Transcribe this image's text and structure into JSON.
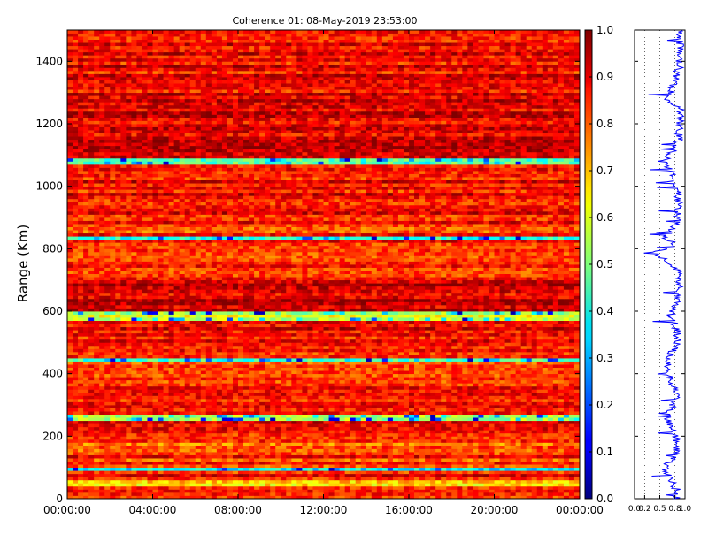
{
  "chart_data": [
    {
      "type": "heatmap",
      "title": "Coherence 01: 08-May-2019 23:53:00",
      "xlabel": "",
      "ylabel": "Range (Km)",
      "x_ticks": [
        "00:00:00",
        "04:00:00",
        "08:00:00",
        "12:00:00",
        "16:00:00",
        "20:00:00",
        "00:00:00"
      ],
      "y_ticks": [
        0,
        200,
        400,
        600,
        800,
        1000,
        1200,
        1400
      ],
      "ylim": [
        0,
        1500
      ],
      "x_range_hours": [
        0,
        24
      ],
      "colormap": "jet",
      "value_range": [
        0,
        1
      ],
      "colorbar_ticks": [
        "0.0",
        "0.1",
        "0.2",
        "0.3",
        "0.4",
        "0.5",
        "0.6",
        "0.7",
        "0.8",
        "0.9",
        "1.0"
      ],
      "band_values": [
        {
          "from": 0,
          "to": 20,
          "value": 0.82
        },
        {
          "from": 20,
          "to": 45,
          "value": 0.87
        },
        {
          "from": 45,
          "to": 60,
          "value": 0.68
        },
        {
          "from": 60,
          "to": 95,
          "value": 0.86
        },
        {
          "from": 95,
          "to": 105,
          "value": 0.35
        },
        {
          "from": 105,
          "to": 150,
          "value": 0.84
        },
        {
          "from": 150,
          "to": 200,
          "value": 0.8
        },
        {
          "from": 200,
          "to": 255,
          "value": 0.86
        },
        {
          "from": 255,
          "to": 270,
          "value": 0.5
        },
        {
          "from": 270,
          "to": 330,
          "value": 0.87
        },
        {
          "from": 330,
          "to": 440,
          "value": 0.83
        },
        {
          "from": 440,
          "to": 450,
          "value": 0.4
        },
        {
          "from": 450,
          "to": 575,
          "value": 0.88
        },
        {
          "from": 575,
          "to": 600,
          "value": 0.55
        },
        {
          "from": 600,
          "to": 700,
          "value": 0.92
        },
        {
          "from": 700,
          "to": 800,
          "value": 0.84
        },
        {
          "from": 800,
          "to": 830,
          "value": 0.85
        },
        {
          "from": 830,
          "to": 840,
          "value": 0.4
        },
        {
          "from": 840,
          "to": 900,
          "value": 0.84
        },
        {
          "from": 900,
          "to": 1070,
          "value": 0.87
        },
        {
          "from": 1070,
          "to": 1090,
          "value": 0.45
        },
        {
          "from": 1090,
          "to": 1300,
          "value": 0.9
        },
        {
          "from": 1300,
          "to": 1500,
          "value": 0.88
        }
      ]
    },
    {
      "type": "line",
      "title": "",
      "xlabel": "",
      "ylabel": "",
      "x_ticks": [
        "0.0",
        "0.2",
        "0.5",
        "0.8",
        "1.0"
      ],
      "xlim": [
        0,
        1
      ],
      "ylim": [
        0,
        1500
      ],
      "grid_x": [
        0.2,
        0.5,
        0.8
      ],
      "grid_style": "dotted",
      "line_color": "#0000ff",
      "profile": [
        {
          "range": 0,
          "value": 0.85
        },
        {
          "range": 30,
          "value": 0.83
        },
        {
          "range": 60,
          "value": 0.72
        },
        {
          "range": 100,
          "value": 0.6
        },
        {
          "range": 150,
          "value": 0.85
        },
        {
          "range": 200,
          "value": 0.82
        },
        {
          "range": 265,
          "value": 0.64
        },
        {
          "range": 330,
          "value": 0.86
        },
        {
          "range": 380,
          "value": 0.7
        },
        {
          "range": 445,
          "value": 0.63
        },
        {
          "range": 500,
          "value": 0.87
        },
        {
          "range": 550,
          "value": 0.82
        },
        {
          "range": 583,
          "value": 0.7
        },
        {
          "range": 650,
          "value": 0.9
        },
        {
          "range": 730,
          "value": 0.85
        },
        {
          "range": 790,
          "value": 0.4
        },
        {
          "range": 810,
          "value": 0.82
        },
        {
          "range": 835,
          "value": 0.62
        },
        {
          "range": 880,
          "value": 0.84
        },
        {
          "range": 960,
          "value": 0.88
        },
        {
          "range": 1000,
          "value": 0.84
        },
        {
          "range": 1080,
          "value": 0.62
        },
        {
          "range": 1150,
          "value": 0.88
        },
        {
          "range": 1250,
          "value": 0.9
        },
        {
          "range": 1270,
          "value": 0.65
        },
        {
          "range": 1380,
          "value": 0.88
        },
        {
          "range": 1440,
          "value": 0.9
        },
        {
          "range": 1500,
          "value": 0.88
        }
      ]
    }
  ]
}
